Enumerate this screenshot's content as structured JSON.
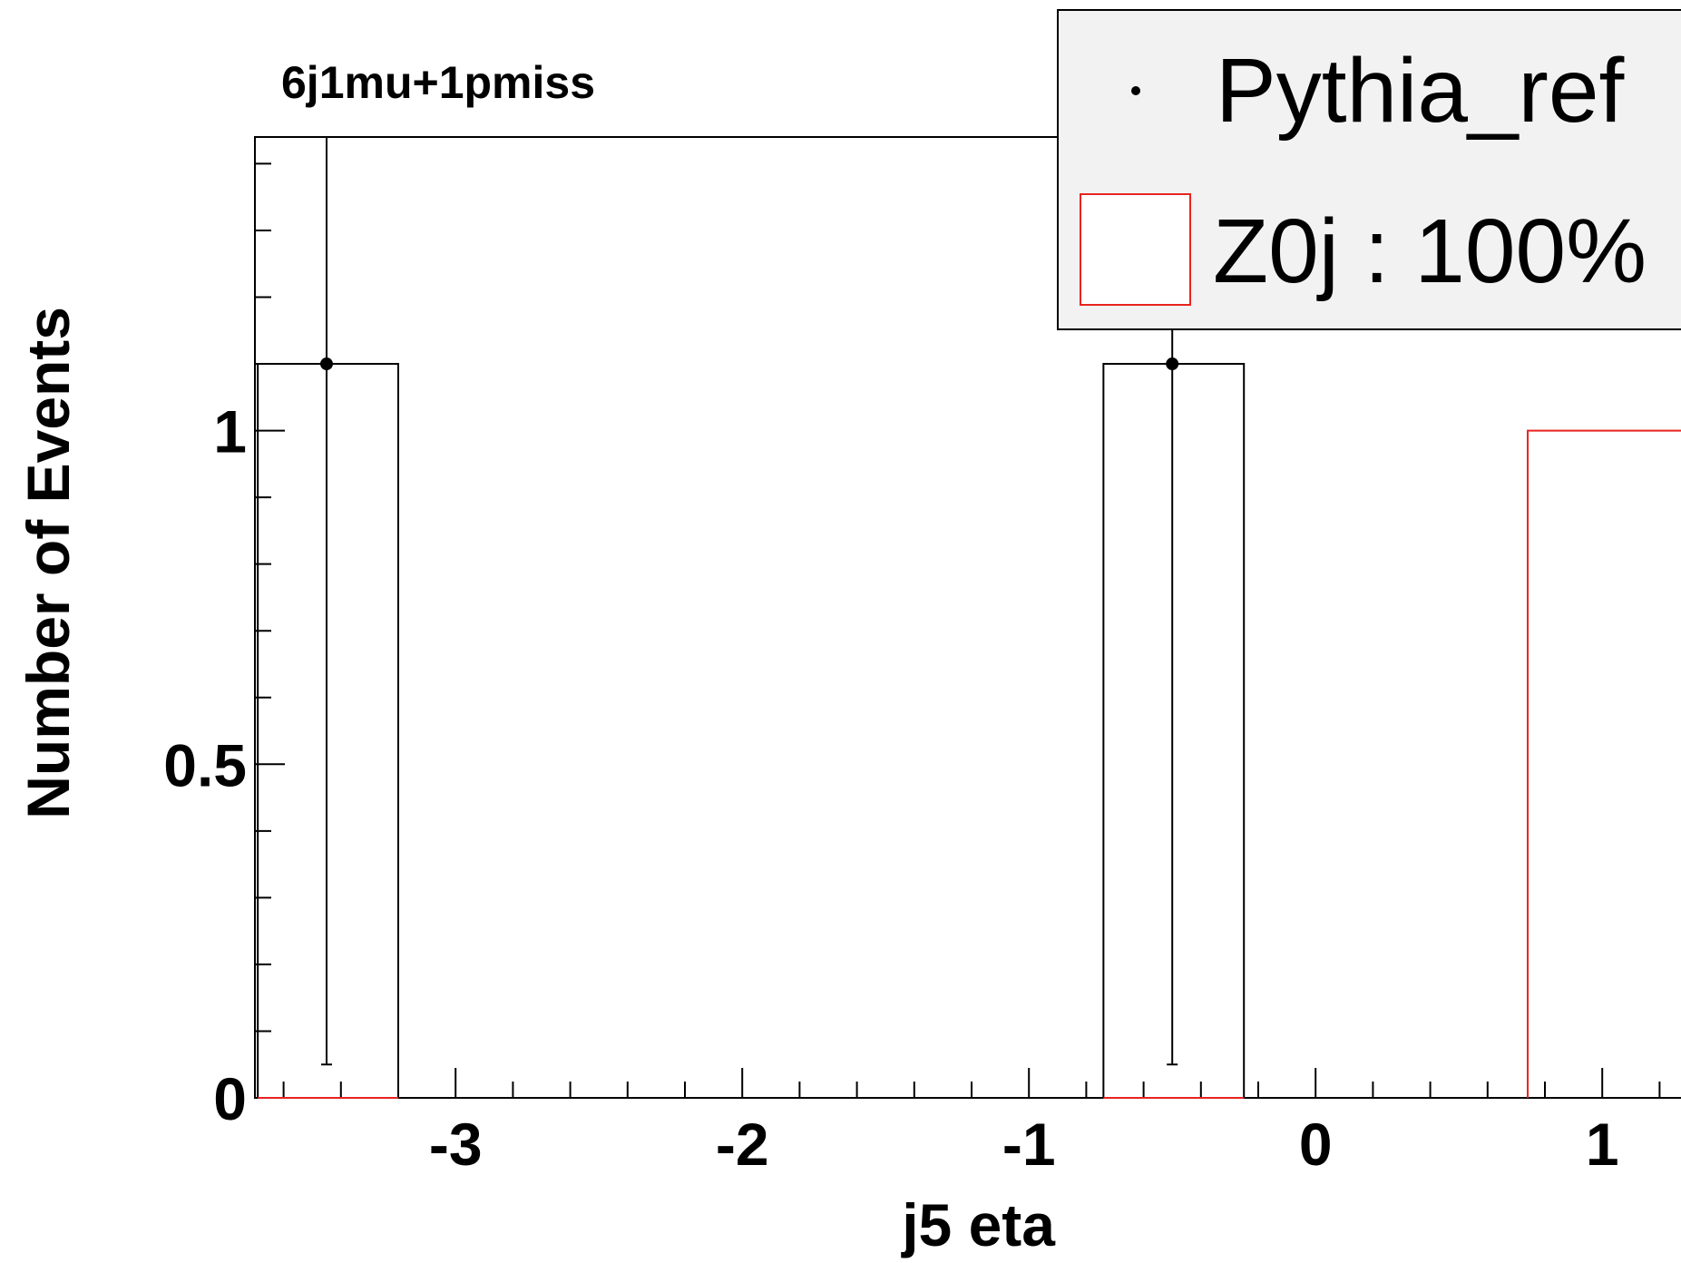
{
  "chart_data": {
    "type": "bar",
    "title": "6j1mu+1pmiss",
    "xlabel": "j5 eta",
    "ylabel": "Number of Events",
    "xlim": [
      -3.7,
      1.3
    ],
    "ylim": [
      0,
      1.44
    ],
    "x_ticks": [
      -3,
      -2,
      -1,
      0,
      1
    ],
    "x_tick_labels": [
      "-3",
      "-2",
      "-1",
      "0",
      "1"
    ],
    "y_ticks": [
      0,
      0.5,
      1
    ],
    "y_tick_labels": [
      "0",
      "0.5",
      "1"
    ],
    "legend_position": "top-right",
    "series": [
      {
        "name": "Pythia_ref",
        "style": "points-with-error-bars",
        "color": "#000000",
        "bins": [
          {
            "x_low": -3.69,
            "x_high": -3.2,
            "x_center": -3.45,
            "y": 1.1,
            "err_low": 0.05,
            "err_high": 1.44
          },
          {
            "x_low": -0.74,
            "x_high": -0.25,
            "x_center": -0.5,
            "y": 1.1,
            "err_low": 0.05,
            "err_high": 1.44
          }
        ]
      },
      {
        "name": "Z0j : 100%",
        "style": "histogram-outline",
        "color": "#e8231f",
        "bins": [
          {
            "x_low": 0.74,
            "x_high": 1.3,
            "y": 1.0
          }
        ]
      }
    ]
  }
}
